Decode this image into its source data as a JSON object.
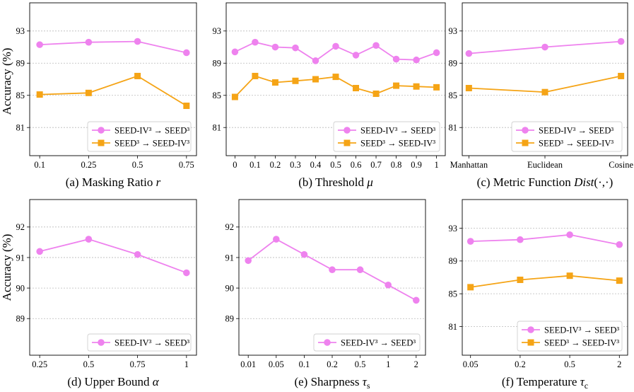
{
  "colors": {
    "series1": "#ee82ee",
    "series2": "#f5a416"
  },
  "ylabel": "Accuracy (%)",
  "chart_data": [
    {
      "type": "line",
      "caption": {
        "prefix": "(a) Masking Ratio ",
        "symbol": "r",
        "sub": ""
      },
      "categories": [
        "0.1",
        "0.25",
        "0.5",
        "0.75"
      ],
      "ylim": [
        77.5,
        96.5
      ],
      "yticks": [
        "81",
        "85",
        "89",
        "93"
      ],
      "grid": true,
      "legend": "lower-right",
      "series": [
        {
          "name": "SEED-IV³ → SEED³",
          "marker": "circle",
          "values": [
            91.3,
            91.6,
            91.7,
            90.3
          ]
        },
        {
          "name": "SEED³ → SEED-IV³",
          "marker": "square",
          "values": [
            85.1,
            85.3,
            87.4,
            83.7
          ]
        }
      ]
    },
    {
      "type": "line",
      "caption": {
        "prefix": "(b) Threshold ",
        "symbol": "μ",
        "sub": ""
      },
      "categories": [
        "0",
        "0.1",
        "0.2",
        "0.3",
        "0.4",
        "0.5",
        "0.6",
        "0.7",
        "0.8",
        "0.9",
        "1"
      ],
      "ylim": [
        77.5,
        96.5
      ],
      "yticks": [
        "81",
        "85",
        "89",
        "93"
      ],
      "grid": true,
      "legend": "lower-right",
      "series": [
        {
          "name": "SEED-IV³ → SEED³",
          "marker": "circle",
          "values": [
            90.4,
            91.6,
            91.0,
            90.9,
            89.3,
            91.1,
            90.0,
            91.2,
            89.5,
            89.4,
            90.3
          ]
        },
        {
          "name": "SEED³ → SEED-IV³",
          "marker": "square",
          "values": [
            84.8,
            87.4,
            86.6,
            86.8,
            87.0,
            87.3,
            85.9,
            85.2,
            86.2,
            86.1,
            86.0
          ]
        }
      ]
    },
    {
      "type": "line",
      "caption": {
        "prefix": "(c) Metric Function ",
        "symbol": "Dist",
        "sub": "",
        "suffix": "(·,·)"
      },
      "categories": [
        "Manhattan",
        "Euclidean",
        "Cosine"
      ],
      "ylim": [
        77.5,
        96.5
      ],
      "yticks": [
        "81",
        "85",
        "89",
        "93"
      ],
      "grid": true,
      "legend": "lower-right",
      "series": [
        {
          "name": "SEED-IV³ → SEED³",
          "marker": "circle",
          "values": [
            90.2,
            91.0,
            91.7
          ]
        },
        {
          "name": "SEED³ → SEED-IV³",
          "marker": "square",
          "values": [
            85.9,
            85.4,
            87.4
          ]
        }
      ]
    },
    {
      "type": "line",
      "caption": {
        "prefix": "(d) Upper Bound ",
        "symbol": "α",
        "sub": ""
      },
      "categories": [
        "0.25",
        "0.5",
        "0.75",
        "1"
      ],
      "ylim": [
        87.8,
        92.9
      ],
      "yticks": [
        "89",
        "90",
        "91",
        "92"
      ],
      "grid": true,
      "legend": "lower-right",
      "series": [
        {
          "name": "SEED-IV³ → SEED³",
          "marker": "circle",
          "values": [
            91.2,
            91.6,
            91.1,
            90.5
          ]
        }
      ]
    },
    {
      "type": "line",
      "caption": {
        "prefix": "(e) Sharpness ",
        "symbol": "τ",
        "sub": "s"
      },
      "categories": [
        "0.01",
        "0.05",
        "0.1",
        "0.2",
        "0.5",
        "1",
        "2"
      ],
      "ylim": [
        87.8,
        92.9
      ],
      "yticks": [
        "89",
        "90",
        "91",
        "92"
      ],
      "grid": true,
      "legend": "lower-right",
      "series": [
        {
          "name": "SEED-IV³ → SEED³",
          "marker": "circle",
          "values": [
            90.9,
            91.6,
            91.1,
            90.6,
            90.6,
            90.1,
            89.6
          ]
        }
      ]
    },
    {
      "type": "line",
      "caption": {
        "prefix": "(f) Temperature ",
        "symbol": "τ",
        "sub": "c"
      },
      "categories": [
        "0.05",
        "0.2",
        "0.5",
        "2"
      ],
      "ylim": [
        77.5,
        96.5
      ],
      "yticks": [
        "81",
        "85",
        "89",
        "93"
      ],
      "grid": true,
      "legend": "lower-right",
      "series": [
        {
          "name": "SEED-IV³ → SEED³",
          "marker": "circle",
          "values": [
            91.4,
            91.6,
            92.2,
            91.0
          ]
        },
        {
          "name": "SEED³ → SEED-IV³",
          "marker": "square",
          "values": [
            85.8,
            86.7,
            87.2,
            86.6
          ]
        }
      ]
    }
  ]
}
